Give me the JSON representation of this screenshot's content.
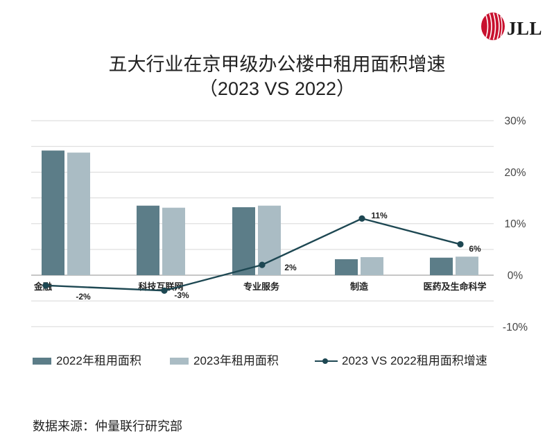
{
  "brand": {
    "logo_text": "JLL",
    "logo_color": "#c8102e"
  },
  "chart_data": {
    "type": "bar",
    "title": "五大行业在京甲级办公楼中租用面积增速",
    "subtitle": "（2023 VS 2022）",
    "categories": [
      "金融",
      "科技互联网",
      "专业服务",
      "制造",
      "医药及生命科学"
    ],
    "series": [
      {
        "name": "2022年租用面积",
        "type": "bar",
        "color": "#5c7d88",
        "values": [
          24.2,
          13.5,
          13.2,
          3.1,
          3.4
        ]
      },
      {
        "name": "2023年租用面积",
        "type": "bar",
        "color": "#aabcc4",
        "values": [
          23.8,
          13.1,
          13.5,
          3.5,
          3.6
        ]
      },
      {
        "name": "2023 VS 2022租用面积增速",
        "type": "line",
        "color": "#1d4752",
        "values": [
          -2,
          -3,
          2,
          11,
          6
        ],
        "labels": [
          "-2%",
          "-3%",
          "2%",
          "11%",
          "6%"
        ]
      }
    ],
    "y_right": {
      "range": [
        -10,
        30
      ],
      "tick_values": [
        30,
        20,
        10,
        0,
        -10
      ],
      "tick_labels": [
        "30%",
        "20%",
        "10%",
        "0%",
        "-10%"
      ]
    },
    "grid": true,
    "legend": "bottom"
  },
  "source": "数据来源：仲量联行研究部"
}
